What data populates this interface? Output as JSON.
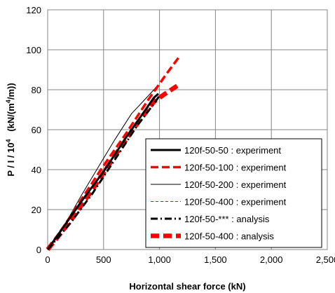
{
  "chart_data": {
    "type": "line",
    "title": "",
    "xlabel": "Horizontal shear force  (kN)",
    "ylabel": {
      "prefix": "P / I  / 10",
      "exp1": "4",
      "middle": "   (kN/(m",
      "exp2": "4",
      "suffix": "/m))"
    },
    "xlim": [
      0,
      2500
    ],
    "ylim": [
      0,
      120
    ],
    "x_ticks": [
      0,
      500,
      1000,
      1500,
      2000,
      2500
    ],
    "x_tick_labels": [
      "0",
      "500",
      "1,000",
      "1,500",
      "2,000",
      "2,500"
    ],
    "y_ticks": [
      0,
      20,
      40,
      60,
      80,
      100,
      120
    ],
    "y_tick_labels": [
      "0",
      "20",
      "40",
      "60",
      "80",
      "100",
      "120"
    ],
    "grid": true,
    "legend_position": "bottom-right",
    "series": [
      {
        "name": "120f-50-50 :  experiment",
        "color": "#000000",
        "style": "solid-thick",
        "points": [
          [
            0,
            0
          ],
          [
            100,
            8
          ],
          [
            300,
            24
          ],
          [
            500,
            39
          ],
          [
            700,
            56
          ],
          [
            850,
            68
          ],
          [
            950,
            76
          ],
          [
            990,
            78
          ]
        ]
      },
      {
        "name": "120f-50-100 : experiment",
        "color": "#ff0000",
        "style": "dashed-thick",
        "points": [
          [
            0,
            0
          ],
          [
            150,
            12
          ],
          [
            300,
            25
          ],
          [
            500,
            42
          ],
          [
            700,
            58
          ],
          [
            900,
            75
          ],
          [
            1050,
            87
          ],
          [
            1170,
            96
          ]
        ]
      },
      {
        "name": "120f-50-200 : experiment",
        "color": "#000000",
        "style": "solid-thin",
        "points": [
          [
            0,
            0
          ],
          [
            150,
            12
          ],
          [
            300,
            27
          ],
          [
            450,
            41
          ],
          [
            600,
            55
          ],
          [
            750,
            68
          ],
          [
            850,
            74
          ],
          [
            950,
            80
          ],
          [
            980,
            82
          ]
        ]
      },
      {
        "name": "120f-50-400 : experiment",
        "color": "#ff0000",
        "style": "dashed-thin",
        "points": [
          [
            0,
            0
          ],
          [
            150,
            11
          ],
          [
            300,
            24
          ],
          [
            450,
            36
          ],
          [
            600,
            48
          ],
          [
            750,
            60
          ],
          [
            900,
            71
          ],
          [
            980,
            75
          ]
        ]
      },
      {
        "name": "120f-50-*** :  analysis",
        "color": "#000000",
        "style": "dashdot-thick",
        "points": [
          [
            0,
            0
          ],
          [
            200,
            13
          ],
          [
            400,
            28
          ],
          [
            600,
            45
          ],
          [
            800,
            62
          ],
          [
            950,
            73
          ],
          [
            1000,
            77
          ]
        ]
      },
      {
        "name": "120f-50-400 : analysis",
        "color": "#ff0000",
        "style": "dashed-heavy",
        "points": [
          [
            0,
            0
          ],
          [
            200,
            14
          ],
          [
            400,
            30
          ],
          [
            600,
            47
          ],
          [
            800,
            63
          ],
          [
            950,
            74
          ],
          [
            1050,
            78
          ],
          [
            1160,
            82
          ]
        ]
      }
    ]
  }
}
